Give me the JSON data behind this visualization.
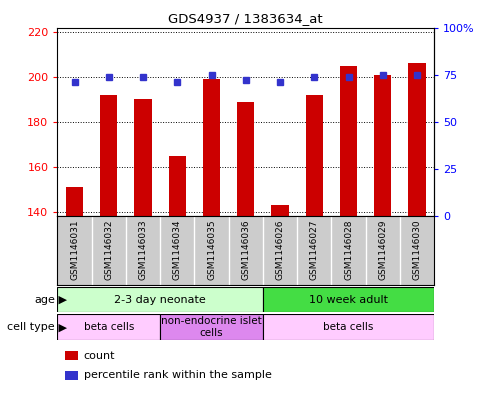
{
  "title": "GDS4937 / 1383634_at",
  "samples": [
    "GSM1146031",
    "GSM1146032",
    "GSM1146033",
    "GSM1146034",
    "GSM1146035",
    "GSM1146036",
    "GSM1146026",
    "GSM1146027",
    "GSM1146028",
    "GSM1146029",
    "GSM1146030"
  ],
  "counts": [
    151,
    192,
    190,
    165,
    199,
    189,
    143,
    192,
    205,
    201,
    206
  ],
  "percentiles": [
    71,
    74,
    74,
    71,
    75,
    72,
    71,
    74,
    74,
    75,
    75
  ],
  "ylim_left": [
    138,
    222
  ],
  "ylim_right": [
    0,
    100
  ],
  "yticks_left": [
    140,
    160,
    180,
    200,
    220
  ],
  "yticks_right": [
    0,
    25,
    50,
    75,
    100
  ],
  "bar_color": "#cc0000",
  "dot_color": "#3333cc",
  "age_groups": [
    {
      "label": "2-3 day neonate",
      "start": 0,
      "end": 6,
      "color": "#ccffcc"
    },
    {
      "label": "10 week adult",
      "start": 6,
      "end": 11,
      "color": "#44dd44"
    }
  ],
  "cell_type_groups": [
    {
      "label": "beta cells",
      "start": 0,
      "end": 3,
      "color": "#ffccff"
    },
    {
      "label": "non-endocrine islet\ncells",
      "start": 3,
      "end": 6,
      "color": "#dd88ee"
    },
    {
      "label": "beta cells",
      "start": 6,
      "end": 11,
      "color": "#ffccff"
    }
  ],
  "legend_items": [
    {
      "color": "#cc0000",
      "label": "count"
    },
    {
      "color": "#3333cc",
      "label": "percentile rank within the sample"
    }
  ],
  "background_color": "#ffffff",
  "sample_bg": "#cccccc",
  "label_row_age": "age",
  "label_row_cell": "cell type"
}
